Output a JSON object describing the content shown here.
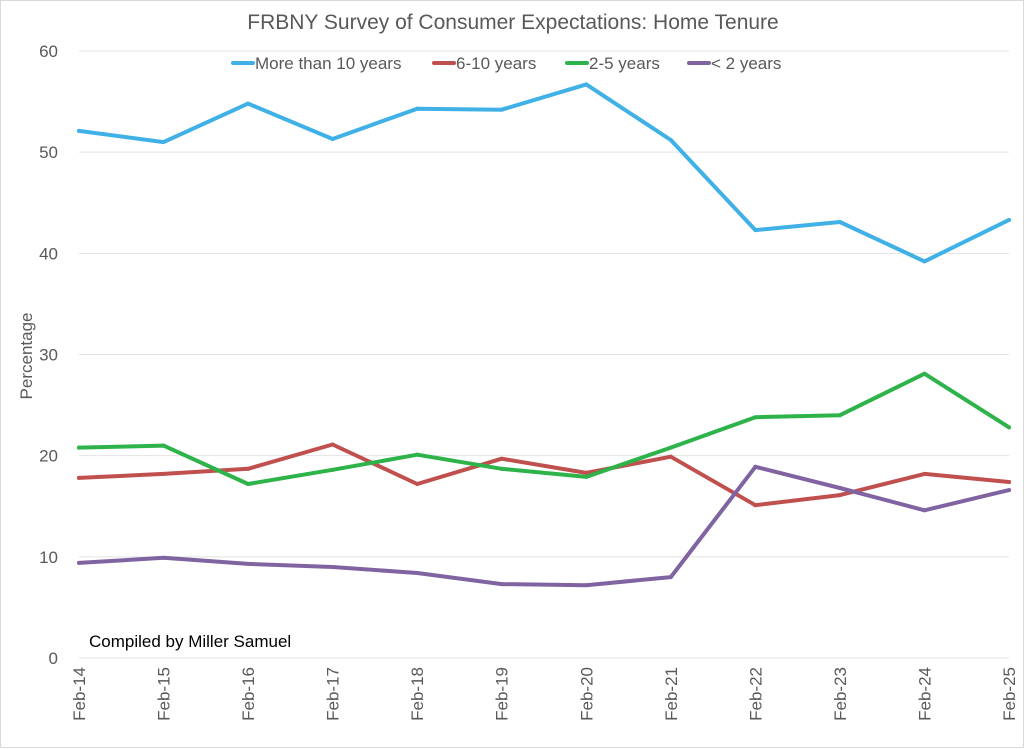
{
  "chart_data": {
    "type": "line",
    "title": "FRBNY Survey of Consumer Expectations: Home Tenure",
    "xlabel": "",
    "ylabel": "Percentage",
    "ylim": [
      0,
      60
    ],
    "yticks": [
      0,
      10,
      20,
      30,
      40,
      50,
      60
    ],
    "grid": true,
    "legend_position": "top",
    "annotation": "Compiled by Miller Samuel",
    "categories": [
      "Feb-14",
      "Feb-15",
      "Feb-16",
      "Feb-17",
      "Feb-18",
      "Feb-19",
      "Feb-20",
      "Feb-21",
      "Feb-22",
      "Feb-23",
      "Feb-24",
      "Feb-25"
    ],
    "series": [
      {
        "name": "More than 10 years",
        "color": "#3fb1e6",
        "values": [
          52.1,
          51.0,
          54.8,
          51.3,
          54.3,
          54.2,
          56.7,
          51.2,
          42.3,
          43.1,
          39.2,
          43.3
        ]
      },
      {
        "name": "6-10 years",
        "color": "#c0504d",
        "values": [
          17.8,
          18.2,
          18.7,
          21.1,
          17.2,
          19.7,
          18.3,
          19.9,
          15.1,
          16.1,
          18.2,
          17.4
        ]
      },
      {
        "name": "2-5 years",
        "color": "#2db34a",
        "values": [
          20.8,
          21.0,
          17.2,
          18.6,
          20.1,
          18.7,
          17.9,
          20.8,
          23.8,
          24.0,
          28.1,
          22.8
        ]
      },
      {
        "name": "< 2 years",
        "color": "#8064a2",
        "values": [
          9.4,
          9.9,
          9.3,
          9.0,
          8.4,
          7.3,
          7.2,
          8.0,
          18.9,
          16.8,
          14.6,
          16.6
        ]
      }
    ]
  }
}
